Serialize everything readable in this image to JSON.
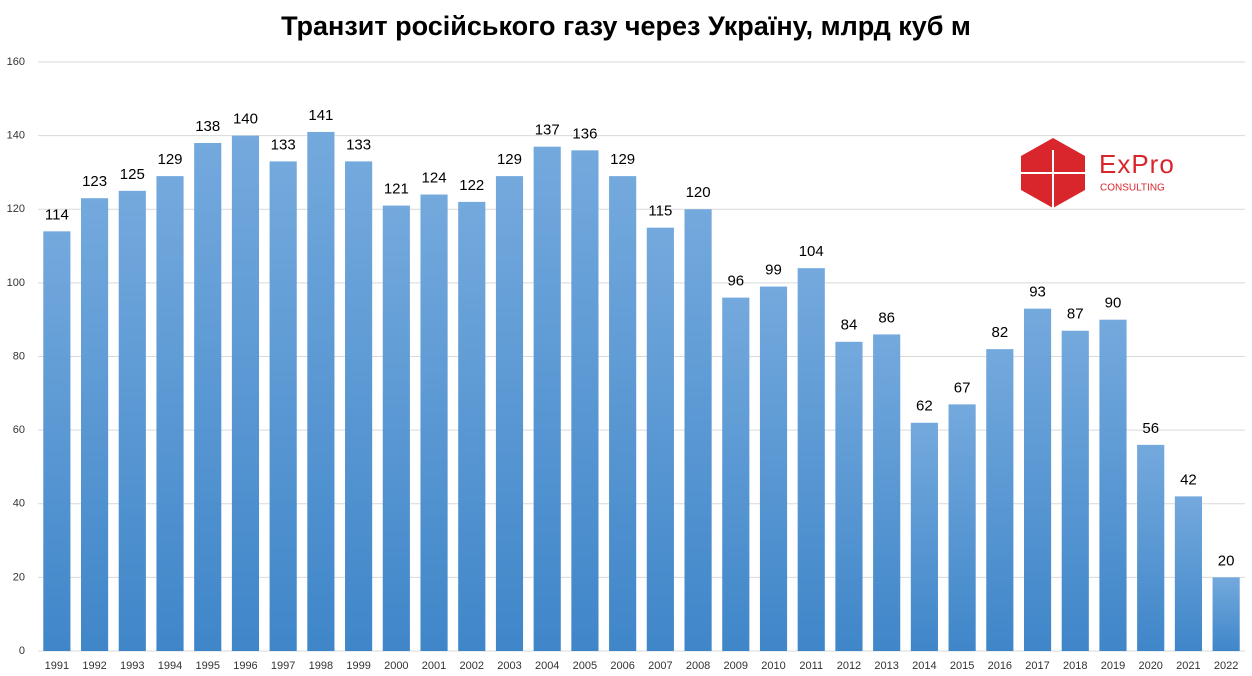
{
  "chart_data": {
    "type": "bar",
    "title": "Транзит російського газу через Україну, млрд куб м",
    "categories": [
      "1991",
      "1992",
      "1993",
      "1994",
      "1995",
      "1996",
      "1997",
      "1998",
      "1999",
      "2000",
      "2001",
      "2002",
      "2003",
      "2004",
      "2005",
      "2006",
      "2007",
      "2008",
      "2009",
      "2010",
      "2011",
      "2012",
      "2013",
      "2014",
      "2015",
      "2016",
      "2017",
      "2018",
      "2019",
      "2020",
      "2021",
      "2022"
    ],
    "values": [
      114,
      123,
      125,
      129,
      138,
      140,
      133,
      141,
      133,
      121,
      124,
      122,
      129,
      137,
      136,
      129,
      115,
      120,
      96,
      99,
      104,
      84,
      86,
      62,
      67,
      82,
      93,
      87,
      90,
      56,
      42,
      20
    ],
    "color": "#5b9bd5",
    "ylim": [
      0,
      160
    ],
    "yticks": [
      0,
      20,
      40,
      60,
      80,
      100,
      120,
      140,
      160
    ],
    "grid": true
  },
  "logo": {
    "name": "ExPro",
    "subtitle": "CONSULTING"
  }
}
